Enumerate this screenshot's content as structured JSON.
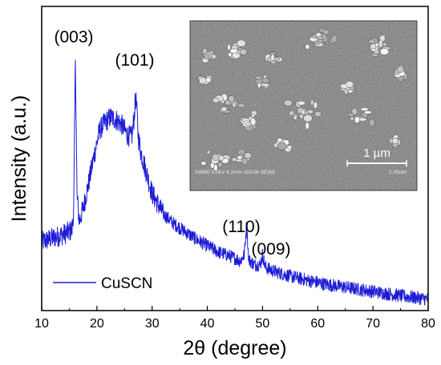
{
  "chart_data": {
    "type": "line",
    "title": "",
    "xlabel": "2θ (degree)",
    "ylabel": "Intensity (a.u.)",
    "xlim": [
      10,
      80
    ],
    "ylim": [
      0,
      100
    ],
    "x_ticks": [
      "10",
      "20",
      "30",
      "40",
      "50",
      "60",
      "70",
      "80"
    ],
    "y_ticks_labeled": false,
    "grid": false,
    "legend": {
      "position": "bottom-left",
      "entries": [
        "CuSCN"
      ]
    },
    "series": [
      {
        "name": "CuSCN",
        "color": "#1c1cd6",
        "x": [
          10,
          12,
          14,
          15,
          15.5,
          15.8,
          16.1,
          16.4,
          16.8,
          17.5,
          18.5,
          19.5,
          20.5,
          21.5,
          22.5,
          23.5,
          24.5,
          25.5,
          26.3,
          26.7,
          27.0,
          27.2,
          27.5,
          28.0,
          29.0,
          30.0,
          32.0,
          34.0,
          36.0,
          38.0,
          40.0,
          42.0,
          44.0,
          46.0,
          46.7,
          47.1,
          47.5,
          48.5,
          49.6,
          50.0,
          50.5,
          52.0,
          55.0,
          58.0,
          61.0,
          64.0,
          67.0,
          70.0,
          73.0,
          76.0,
          80.0
        ],
        "y": [
          27,
          28.5,
          30,
          31,
          32,
          40,
          100,
          45,
          35,
          40,
          50,
          61,
          71,
          74,
          76,
          75,
          73,
          69,
          68,
          75,
          84,
          80,
          68,
          62,
          54,
          46,
          38,
          34,
          31,
          28,
          25.5,
          23,
          21.5,
          19.5,
          22,
          34,
          20,
          18,
          18,
          22,
          17,
          15.5,
          13.5,
          12,
          10.5,
          9.5,
          8.5,
          7.5,
          6.5,
          5.5,
          4.5
        ]
      }
    ],
    "annotations": [
      "(003)",
      "(101)",
      "(110)",
      "(009)"
    ]
  },
  "inset": {
    "kind": "SEM micrograph",
    "scale_bar_label": "1 µm",
    "info_text": "S4800 5.0kV 4.2mm x50.0k SE(M)",
    "info_text_right": "1.00um"
  },
  "colors": {
    "series": "#1c1cd6",
    "axis": "#000000",
    "sem_background": "#6f6f6f"
  }
}
